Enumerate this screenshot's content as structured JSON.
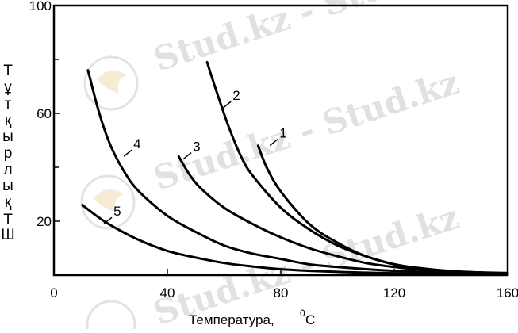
{
  "chart_data": {
    "type": "line",
    "title": "",
    "xlabel": "Температура,",
    "xlabel_unit": "0С",
    "ylabel": "Тұтқырлық ТШ",
    "ylabel_chars": [
      "Т",
      "ұ",
      "т",
      "қ",
      "ы",
      "р",
      "л",
      "ы",
      "қ",
      "Т",
      "Ш"
    ],
    "xlim": [
      0,
      160
    ],
    "ylim": [
      0,
      100
    ],
    "x_ticks": [
      "0",
      "40",
      "80",
      "120",
      "160"
    ],
    "y_ticks": [
      "20",
      "60",
      "100"
    ],
    "grid": false,
    "series": [
      {
        "name": "1",
        "x": [
          72,
          75,
          80,
          90,
          100,
          110,
          120,
          130,
          140,
          150,
          160
        ],
        "y": [
          48,
          40,
          31,
          19,
          12,
          7,
          4,
          2.3,
          1.4,
          1,
          0.8
        ]
      },
      {
        "name": "2",
        "x": [
          54,
          58,
          62,
          66,
          70,
          80,
          90,
          100,
          110,
          120,
          130,
          140,
          150,
          160
        ],
        "y": [
          79,
          66,
          54,
          44,
          37,
          25,
          17,
          11,
          7,
          4,
          2.5,
          1.5,
          1,
          0.6
        ]
      },
      {
        "name": "3",
        "x": [
          44,
          48,
          52,
          60,
          70,
          80,
          90,
          100,
          110,
          120,
          130,
          140,
          150,
          160
        ],
        "y": [
          44,
          37,
          32,
          25,
          19,
          14,
          10,
          7,
          4.5,
          3,
          2,
          1.3,
          0.9,
          0.6
        ]
      },
      {
        "name": "4",
        "x": [
          12,
          16,
          20,
          25,
          30,
          40,
          50,
          60,
          70,
          80,
          90,
          100,
          110,
          120,
          140,
          160
        ],
        "y": [
          76,
          60,
          48,
          38,
          31,
          22,
          16,
          11,
          8,
          6,
          4,
          3,
          2.2,
          1.6,
          0.9,
          0.5
        ]
      },
      {
        "name": "5",
        "x": [
          10,
          15,
          20,
          30,
          40,
          50,
          60,
          70,
          80,
          90,
          100,
          110,
          120,
          140,
          160
        ],
        "y": [
          26,
          22,
          18.5,
          13,
          9,
          6.5,
          4.5,
          3.2,
          2.2,
          1.6,
          1.2,
          0.9,
          0.7,
          0.5,
          0.4
        ]
      }
    ],
    "curve_label_x": {
      "1": 79.5,
      "2": 63,
      "3": 49,
      "4": 28,
      "5": 21
    },
    "curve_label_y": {
      "1": 51,
      "2": 65,
      "3": 46,
      "4": 47,
      "5": 22
    },
    "annotations": [],
    "line_color": "#000000"
  },
  "watermark": {
    "text": "Stud.kz - Stud.kz",
    "color": "#d8d8d8"
  }
}
